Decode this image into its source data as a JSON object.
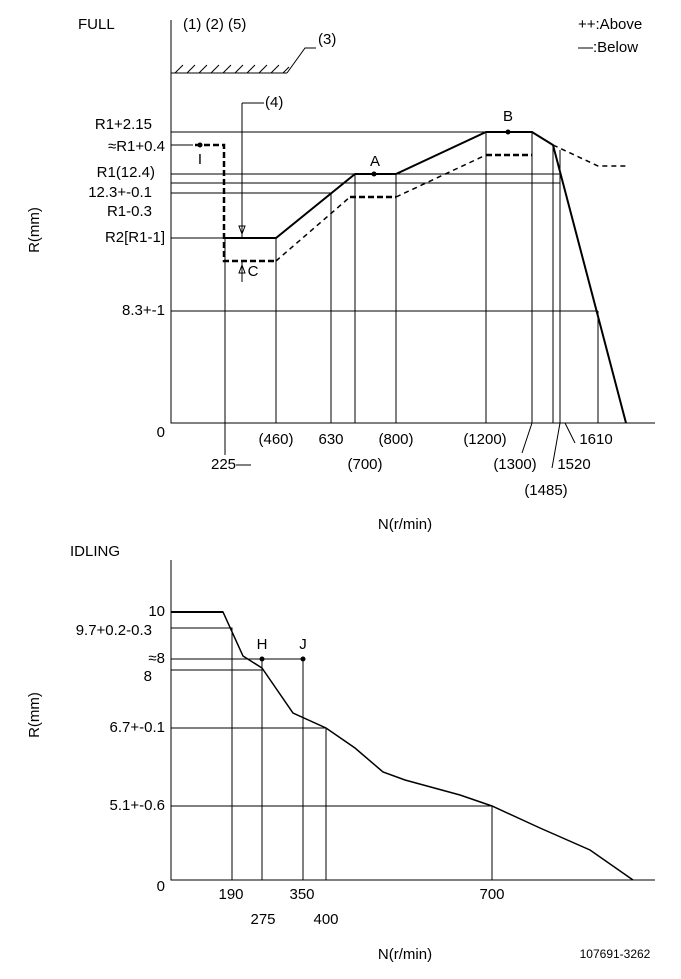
{
  "full": {
    "title": "FULL",
    "notes": "(1) (2) (5)",
    "legend": {
      "above": "++:Above",
      "below": "—:Below"
    },
    "stop": "(3)",
    "callout": "(4)",
    "y_labels": [
      "R1+2.15",
      "≈R1+0.4",
      "R1(12.4)",
      "12.3+-0.1",
      "R1-0.3",
      "R2[R1-1]",
      "8.3+-1",
      "0"
    ],
    "points": {
      "a": "A",
      "b": "B",
      "c": "C",
      "i": "I"
    },
    "x_labels": [
      "(460)",
      "630",
      "(800)",
      "(1200)",
      "1610",
      "225—",
      "(700)",
      "(1300)",
      "1520",
      "(1485)"
    ],
    "y_axis": "R(mm)",
    "x_axis": "N(r/min)"
  },
  "idling": {
    "title": "IDLING",
    "y_labels": [
      "10",
      "9.7+0.2-0.3",
      "≈8",
      "8",
      "6.7+-0.1",
      "5.1+-0.6",
      "0"
    ],
    "points": {
      "h": "H",
      "j": "J"
    },
    "x_labels": [
      "190",
      "275",
      "350",
      "400",
      "700"
    ],
    "y_axis": "R(mm)",
    "x_axis": "N(r/min)"
  },
  "footer": "107691-3262"
}
